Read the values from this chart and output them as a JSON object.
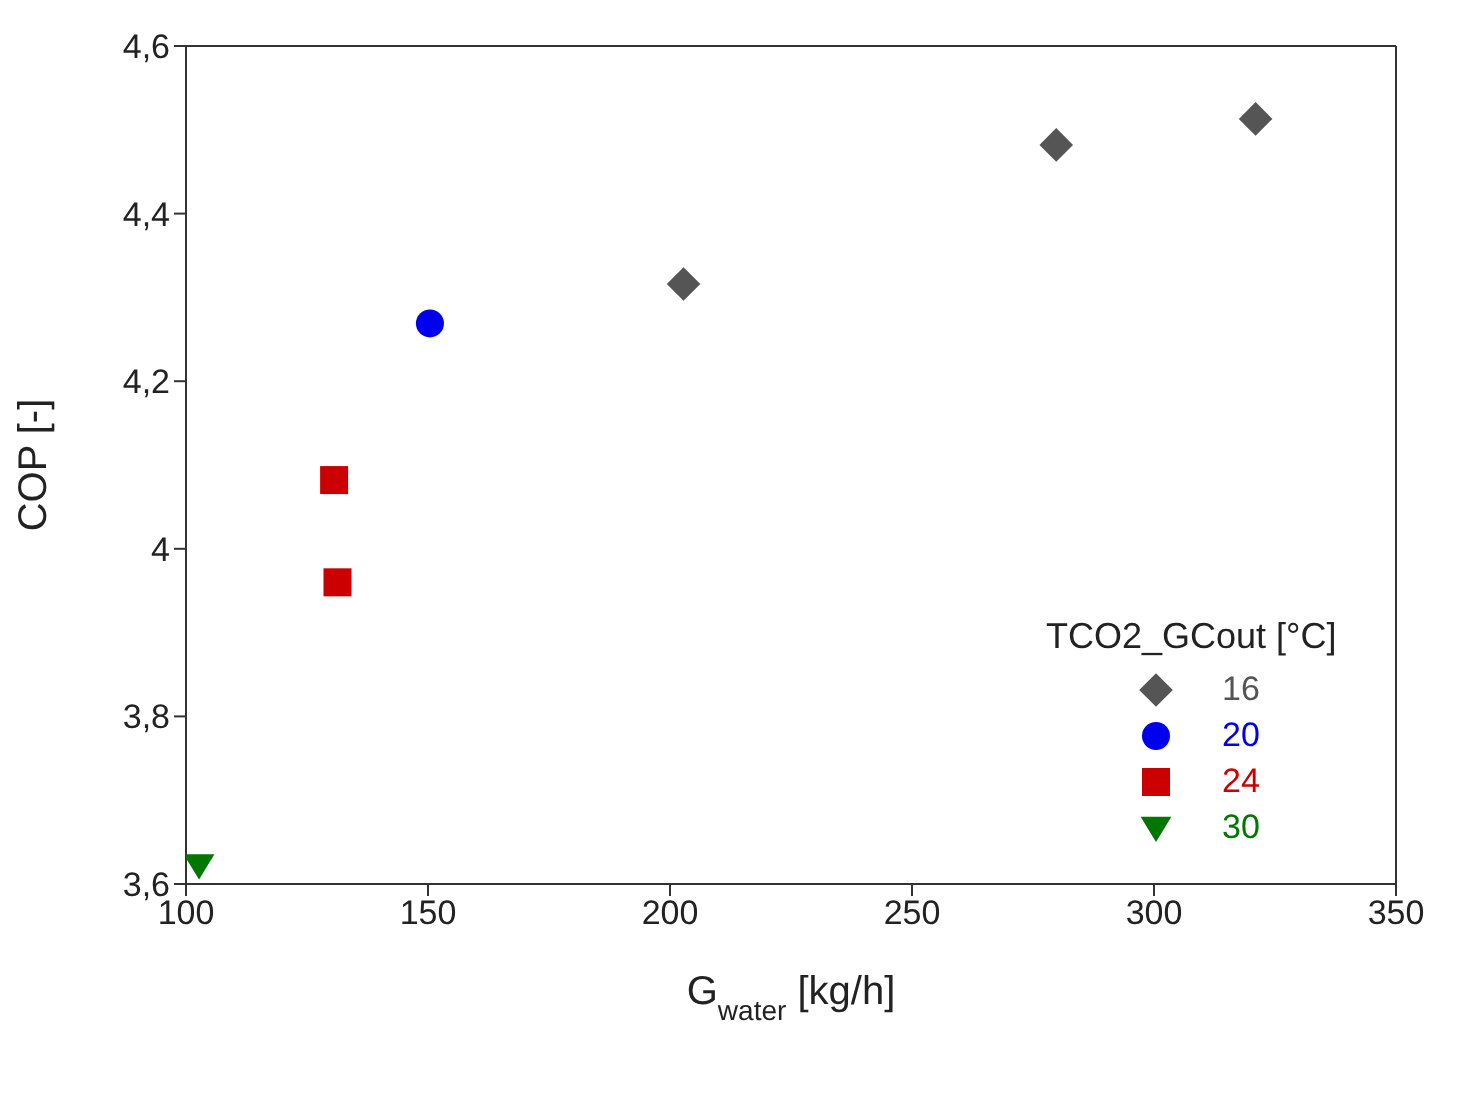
{
  "chart_data": {
    "type": "scatter",
    "xlabel": "G$_{water}$ [kg/h]",
    "ylabel": "COP [-]",
    "legend_title": "TCO2_GCout [°C]",
    "legend": "bottom right",
    "grid": false,
    "xlim": [
      100,
      350
    ],
    "xticks": [
      100,
      150,
      200,
      250,
      300,
      350
    ],
    "ylim": [
      3.6,
      4.6
    ],
    "yticks": [
      {
        "value": 3.6,
        "label": "3,6"
      },
      {
        "value": 3.8,
        "label": "3,8"
      },
      {
        "value": 4,
        "label": "4"
      },
      {
        "value": 4.2,
        "label": "4,2"
      },
      {
        "value": 4.4,
        "label": "4,4"
      },
      {
        "value": 4.6,
        "label": "4,6"
      }
    ],
    "series": [
      {
        "name": "16",
        "color": "#555555",
        "marker": "diamond",
        "x": [
          202.8,
          279.8,
          321
        ],
        "values": [
          4.316,
          4.482,
          4.513
        ]
      },
      {
        "name": "20",
        "color": "#0000ee",
        "marker": "circle",
        "x": [
          150.4
        ],
        "values": [
          4.269
        ]
      },
      {
        "name": "24",
        "color": "#cc0000",
        "marker": "square",
        "x": [
          130.6,
          131.3
        ],
        "values": [
          4.082,
          3.96
        ]
      },
      {
        "name": "30",
        "color": "#007700",
        "marker": "triangle-down",
        "x": [
          102.7
        ],
        "values": [
          3.622
        ]
      }
    ]
  }
}
